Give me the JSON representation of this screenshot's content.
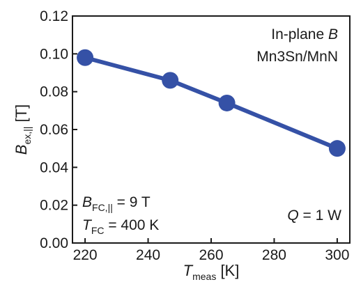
{
  "chart_data": {
    "type": "line",
    "x": [
      220,
      247,
      265,
      300
    ],
    "series": [
      {
        "values": [
          0.098,
          0.086,
          0.074,
          0.05
        ],
        "color": "#3551a6"
      }
    ],
    "xlim": [
      216,
      304
    ],
    "ylim": [
      0.0,
      0.12
    ],
    "x_ticks": [
      220,
      240,
      260,
      280,
      300
    ],
    "y_ticks": [
      "0.00",
      "0.02",
      "0.04",
      "0.06",
      "0.08",
      "0.10",
      "0.12"
    ],
    "xlabel": {
      "main": "T",
      "sub": "meas",
      "unit": " [K]"
    },
    "ylabel": {
      "main": "B",
      "sub": "ex,||",
      "unit": " [T]"
    },
    "annotations": {
      "top_right": {
        "line1_text": "In-plane ",
        "line1_italic": "B",
        "line2": "Mn3Sn/MnN"
      },
      "bottom_left": {
        "line1": {
          "main": "B",
          "sub": "FC,||",
          "rest": " = 9 T"
        },
        "line2": {
          "main": "T",
          "sub": "FC",
          "rest": " = 400 K"
        }
      },
      "bottom_right": {
        "main": "Q",
        "rest": " = 1 W"
      }
    },
    "grid": false,
    "legend": "none"
  }
}
